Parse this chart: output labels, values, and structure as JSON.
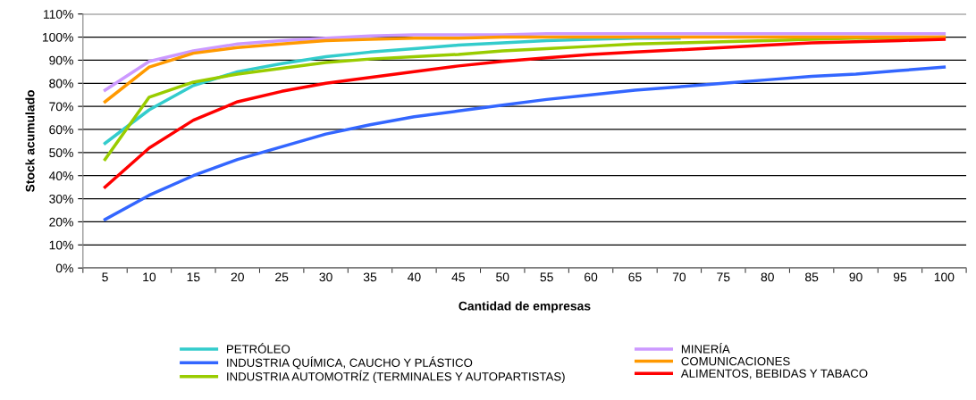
{
  "chart_data": {
    "type": "line",
    "xlabel": "Cantidad de empresas",
    "ylabel": "Stock acumulado",
    "categories": [
      "5",
      "10",
      "15",
      "20",
      "25",
      "30",
      "35",
      "40",
      "45",
      "50",
      "55",
      "60",
      "65",
      "70",
      "75",
      "80",
      "85",
      "90",
      "95",
      "100"
    ],
    "ylim": [
      0,
      110
    ],
    "yticks": [
      {
        "value": 0,
        "label": "0%"
      },
      {
        "value": 10,
        "label": "10%"
      },
      {
        "value": 20,
        "label": "20%"
      },
      {
        "value": 30,
        "label": "30%"
      },
      {
        "value": 40,
        "label": "40%"
      },
      {
        "value": 50,
        "label": "50%"
      },
      {
        "value": 60,
        "label": "60%"
      },
      {
        "value": 70,
        "label": "70%"
      },
      {
        "value": 80,
        "label": "80%"
      },
      {
        "value": 90,
        "label": "90%"
      },
      {
        "value": 100,
        "label": "100%"
      },
      {
        "value": 110,
        "label": "110%"
      }
    ],
    "grid": "y",
    "legend": "bottom",
    "marker": "none",
    "line_style": "solid",
    "series": [
      {
        "name": "PETRÓLEO",
        "color": "#33cccc",
        "values": [
          54,
          68.5,
          79,
          85,
          88.5,
          91.5,
          93.5,
          95,
          96.5,
          97.5,
          98.5,
          99,
          99.5,
          99.5,
          null,
          null,
          null,
          null,
          null,
          null
        ]
      },
      {
        "name": "INDUSTRIA QUÍMICA, CAUCHO Y PLÁSTICO",
        "color": "#3366ff",
        "values": [
          21,
          31.5,
          40,
          47,
          52.5,
          58,
          62,
          65.5,
          68,
          70.5,
          73,
          75,
          77,
          78.5,
          80,
          81.5,
          83,
          84,
          85.5,
          87
        ]
      },
      {
        "name": "INDUSTRIA AUTOMOTRÍZ (TERMINALES Y AUTOPARTISTAS)",
        "color": "#99cc00",
        "values": [
          47,
          74,
          80.5,
          84,
          86.5,
          89,
          90.5,
          91.5,
          92.5,
          94,
          95,
          96,
          97,
          97.5,
          98,
          98.5,
          99,
          99.5,
          99.5,
          100
        ]
      },
      {
        "name": "MINERÍA",
        "color": "#cc99ff",
        "values": [
          77,
          89.5,
          94,
          97,
          98.5,
          99.5,
          100.5,
          101,
          101,
          101,
          101.5,
          101.5,
          101.5,
          101.5,
          101.5,
          101.5,
          101.5,
          101.5,
          101.5,
          101.5
        ]
      },
      {
        "name": "COMUNICACIONES",
        "color": "#ff9900",
        "values": [
          72,
          87,
          93,
          95.5,
          97,
          98.5,
          99,
          99.5,
          99.5,
          100,
          100,
          100,
          100,
          100,
          100,
          100,
          100,
          100,
          100,
          100
        ]
      },
      {
        "name": "ALIMENTOS, BEBIDAS Y TABACO",
        "color": "#ff0000",
        "values": [
          35,
          52,
          64,
          72,
          76.5,
          80,
          82.5,
          85,
          87.5,
          89.5,
          91,
          92.5,
          93.5,
          94.5,
          95.5,
          96.5,
          97.5,
          98,
          98.5,
          99
        ]
      }
    ]
  }
}
